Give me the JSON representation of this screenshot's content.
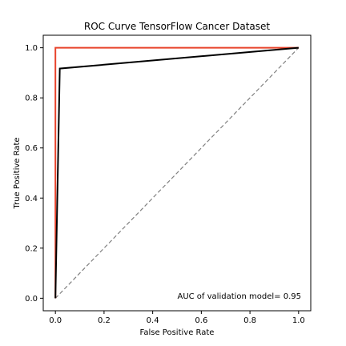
{
  "chart_data": {
    "type": "line",
    "title": "ROC Curve TensorFlow Cancer Dataset",
    "xlabel": "False Positive Rate",
    "ylabel": "True Positive Rate",
    "xlim": [
      -0.05,
      1.05
    ],
    "ylim": [
      -0.05,
      1.05
    ],
    "xticks": [
      "0.0",
      "0.2",
      "0.4",
      "0.6",
      "0.8",
      "1.0"
    ],
    "yticks": [
      "0.0",
      "0.2",
      "0.4",
      "0.6",
      "0.8",
      "1.0"
    ],
    "grid": false,
    "annotation": "AUC of validation model= 0.95",
    "series": [
      {
        "x": [
          0,
          0,
          1
        ],
        "y": [
          0,
          1,
          1
        ],
        "color": "#e8432b",
        "style": "solid"
      },
      {
        "x": [
          0,
          0.018,
          1
        ],
        "y": [
          0,
          0.917,
          1
        ],
        "color": "#000000",
        "style": "solid"
      },
      {
        "x": [
          0,
          1
        ],
        "y": [
          0,
          1
        ],
        "color": "#808080",
        "style": "dashed"
      }
    ]
  }
}
